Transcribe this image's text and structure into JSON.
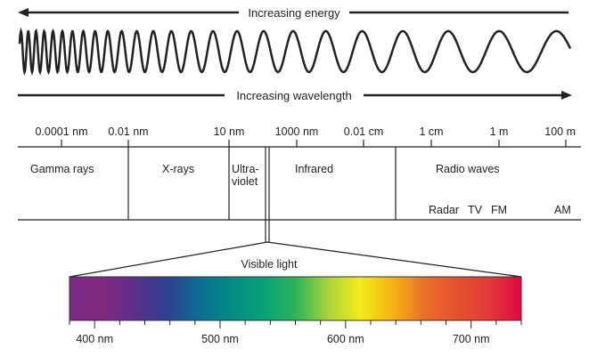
{
  "arrows": {
    "energy": "Increasing energy",
    "wavelength": "Increasing wavelength"
  },
  "scale_ticks": [
    "0.0001 nm",
    "0.01 nm",
    "10 nm",
    "1000 nm",
    "0.01 cm",
    "1 cm",
    "1 m",
    "100 m"
  ],
  "regions": {
    "gamma": "Gamma rays",
    "xrays": "X-rays",
    "uv_line1": "Ultra-",
    "uv_line2": "violet",
    "infrared": "Infrared",
    "radio": "Radio waves",
    "radio_bands": [
      "Radar",
      "TV",
      "FM",
      "AM"
    ]
  },
  "visible": {
    "label": "Visible light",
    "tick_labels": [
      "400 nm",
      "500 nm",
      "600 nm",
      "700 nm"
    ],
    "colors": [
      "#7b2a85",
      "#83297f",
      "#5b2f8a",
      "#2f3f8f",
      "#0b6d94",
      "#048a84",
      "#0aa07a",
      "#2eb35a",
      "#a8d23a",
      "#f3ec1a",
      "#f6b413",
      "#e8702a",
      "#e4522e",
      "#e23a3b",
      "#e0073f"
    ]
  }
}
